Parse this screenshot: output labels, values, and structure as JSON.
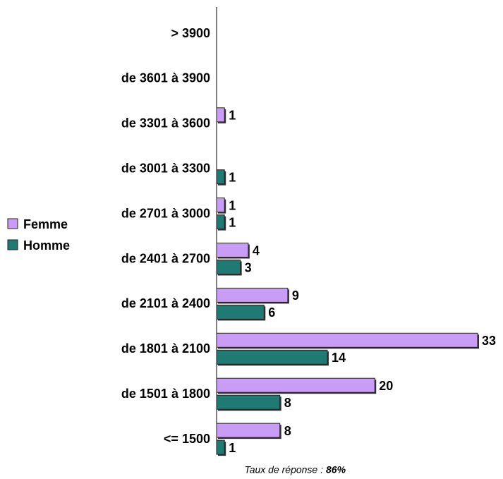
{
  "chart_data": {
    "type": "barh",
    "categories": [
      "> 3900",
      "de 3601 à 3900",
      "de 3301 à 3600",
      "de 3001 à 3300",
      "de 2701 à 3000",
      "de 2401 à 2700",
      "de 2101 à 2400",
      "de 1801 à 2100",
      "de 1501 à 1800",
      "<= 1500"
    ],
    "series": [
      {
        "name": "Femme",
        "color": "#c99cf7",
        "values": [
          null,
          null,
          1,
          null,
          1,
          4,
          9,
          33,
          20,
          8
        ]
      },
      {
        "name": "Homme",
        "color": "#1e7a72",
        "values": [
          null,
          null,
          null,
          1,
          1,
          3,
          6,
          14,
          8,
          1
        ]
      }
    ],
    "legend": "left",
    "footnote": {
      "text": "Taux de réponse :",
      "value": "86%"
    }
  }
}
